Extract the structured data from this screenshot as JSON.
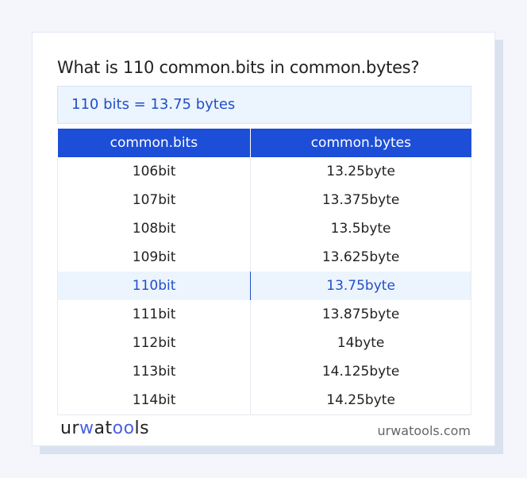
{
  "title": "What is 110 common.bits in common.bytes?",
  "result": "110 bits = 13.75 bytes",
  "table": {
    "headers": [
      "common.bits",
      "common.bytes"
    ],
    "rows": [
      [
        "106bit",
        "13.25byte"
      ],
      [
        "107bit",
        "13.375byte"
      ],
      [
        "108bit",
        "13.5byte"
      ],
      [
        "109bit",
        "13.625byte"
      ],
      [
        "110bit",
        "13.75byte"
      ],
      [
        "111bit",
        "13.875byte"
      ],
      [
        "112bit",
        "14byte"
      ],
      [
        "113bit",
        "14.125byte"
      ],
      [
        "114bit",
        "14.25byte"
      ]
    ],
    "highlighted_row": 4
  },
  "footer": {
    "logo": "urwatools",
    "site": "urwatools.com"
  },
  "colors": {
    "accent": "#1d4ed8",
    "highlight_bg": "#ecf4fe"
  }
}
